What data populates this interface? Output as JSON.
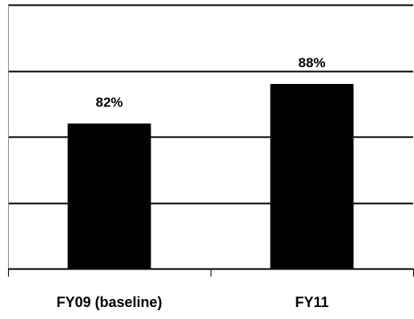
{
  "chart_data": {
    "type": "bar",
    "categories": [
      "FY09 (baseline)",
      "FY11"
    ],
    "values": [
      82,
      88
    ],
    "data_labels": [
      "82%",
      "88%"
    ],
    "ylim": [
      60,
      100
    ],
    "y_gridlines": [
      70,
      80,
      90,
      100
    ],
    "grid": true,
    "legend": "none",
    "bar_color": "#000000",
    "grid_color": "#000000"
  }
}
